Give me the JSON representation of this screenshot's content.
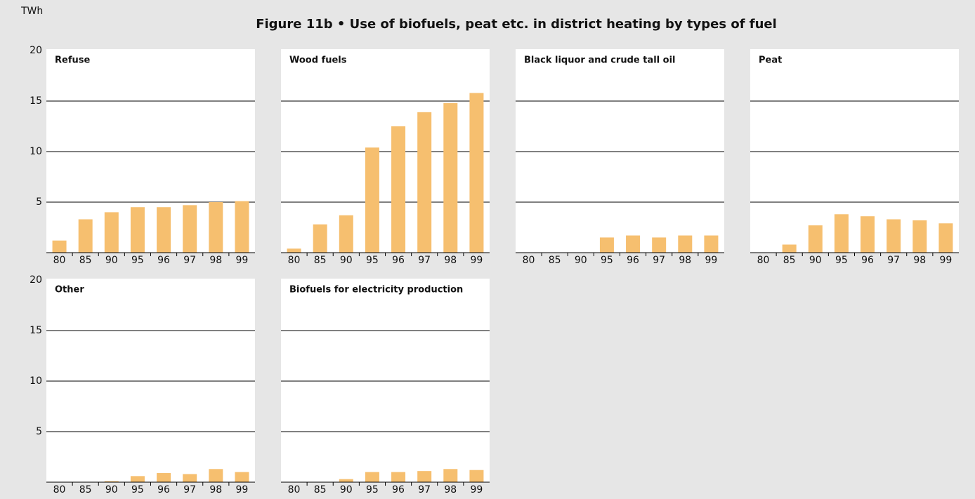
{
  "title": "Figure 11b • Use of biofuels, peat etc. in district heating by types of fuel",
  "y_label": "TWh",
  "chart_data": [
    {
      "type": "bar",
      "title": "Refuse",
      "categories": [
        "80",
        "85",
        "90",
        "95",
        "96",
        "97",
        "98",
        "99"
      ],
      "values": [
        1.2,
        3.3,
        4.0,
        4.5,
        4.5,
        4.7,
        5.0,
        5.1
      ],
      "color": "#f6bf6f",
      "ylim": [
        0,
        20
      ],
      "yticks": [
        5,
        10,
        15,
        20
      ],
      "grid": true
    },
    {
      "type": "bar",
      "title": "Wood fuels",
      "categories": [
        "80",
        "85",
        "90",
        "95",
        "96",
        "97",
        "98",
        "99"
      ],
      "values": [
        0.4,
        2.8,
        3.7,
        10.4,
        12.5,
        13.9,
        14.8,
        15.8
      ],
      "color": "#f6bf6f",
      "ylim": [
        0,
        20
      ],
      "yticks": [
        5,
        10,
        15,
        20
      ],
      "grid": true
    },
    {
      "type": "bar",
      "title": "Black liquor and crude tall oil",
      "categories": [
        "80",
        "85",
        "90",
        "95",
        "96",
        "97",
        "98",
        "99"
      ],
      "values": [
        0,
        0,
        0,
        1.5,
        1.7,
        1.5,
        1.7,
        1.7
      ],
      "color": "#f6bf6f",
      "ylim": [
        0,
        20
      ],
      "yticks": [
        5,
        10,
        15,
        20
      ],
      "grid": true
    },
    {
      "type": "bar",
      "title": "Peat",
      "categories": [
        "80",
        "85",
        "90",
        "95",
        "96",
        "97",
        "98",
        "99"
      ],
      "values": [
        0,
        0.8,
        2.7,
        3.8,
        3.6,
        3.3,
        3.2,
        2.9
      ],
      "color": "#f6bf6f",
      "ylim": [
        0,
        20
      ],
      "yticks": [
        5,
        10,
        15,
        20
      ],
      "grid": true
    },
    {
      "type": "bar",
      "title": "Other",
      "categories": [
        "80",
        "85",
        "90",
        "95",
        "96",
        "97",
        "98",
        "99"
      ],
      "values": [
        0,
        0,
        0.1,
        0.6,
        0.9,
        0.8,
        1.3,
        1.0
      ],
      "color": "#f6bf6f",
      "ylim": [
        0,
        20
      ],
      "yticks": [
        5,
        10,
        15,
        20
      ],
      "grid": true
    },
    {
      "type": "bar",
      "title": "Biofuels for electricity production",
      "categories": [
        "80",
        "85",
        "90",
        "95",
        "96",
        "97",
        "98",
        "99"
      ],
      "values": [
        0,
        0,
        0.3,
        1.0,
        1.0,
        1.1,
        1.3,
        1.2
      ],
      "color": "#f6bf6f",
      "ylim": [
        0,
        20
      ],
      "yticks": [
        5,
        10,
        15,
        20
      ],
      "grid": true
    }
  ]
}
